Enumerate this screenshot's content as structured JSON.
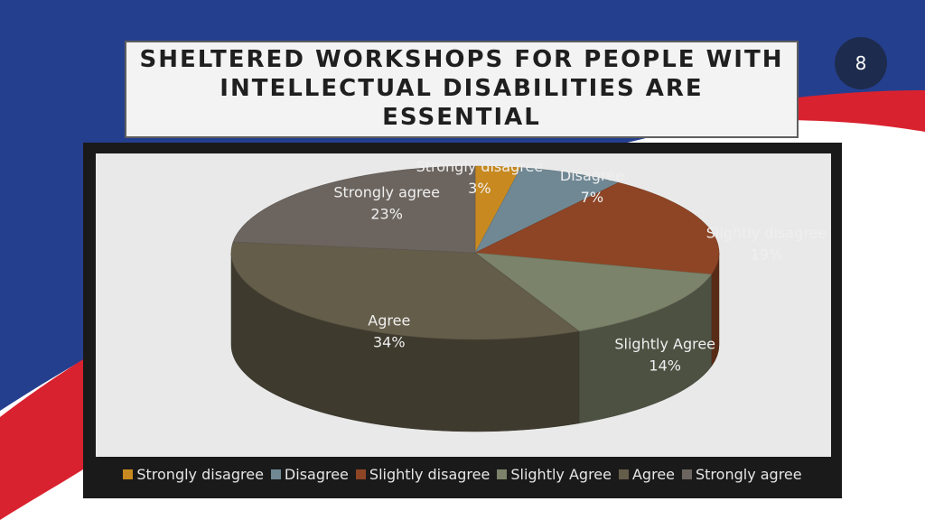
{
  "slide": {
    "title": "SHELTERED WORKSHOPS FOR PEOPLE WITH INTELLECTUAL DISABILITIES ARE ESSENTIAL",
    "page_number": "8"
  },
  "colors": {
    "background_blue": "#253f8f",
    "accent_red": "#d9222f",
    "badge": "#1d2c4e",
    "chart_frame": "#1a1a1a",
    "plot_area": "#e9e9e9",
    "label_text": "#efefef"
  },
  "chart_data": {
    "type": "pie",
    "style": "3d",
    "title": "",
    "legend_position": "bottom",
    "slices": [
      {
        "name": "Strongly disagree",
        "value": 3,
        "label": "3%",
        "color": "#c88a20"
      },
      {
        "name": "Disagree",
        "value": 7,
        "label": "7%",
        "color": "#6f8894"
      },
      {
        "name": "Slightly disagree",
        "value": 19,
        "label": "19%",
        "color": "#8e4525"
      },
      {
        "name": "Slightly Agree",
        "value": 14,
        "label": "14%",
        "color": "#7b836a"
      },
      {
        "name": "Agree",
        "value": 34,
        "label": "34%",
        "color": "#645d4a"
      },
      {
        "name": "Strongly agree",
        "value": 23,
        "label": "23%",
        "color": "#6c655f"
      }
    ]
  }
}
